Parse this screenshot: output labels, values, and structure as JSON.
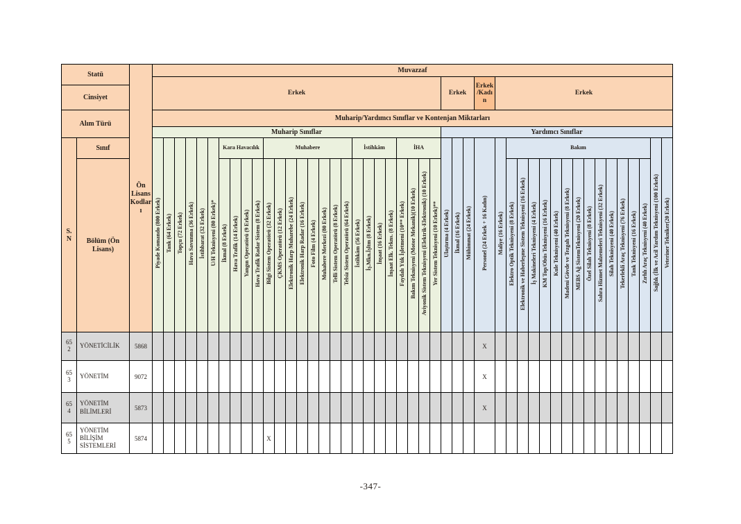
{
  "page": {
    "number_label": "-347-"
  },
  "colors": {
    "header_orange": "#FBD5B5",
    "header_orange_dark": "#FAC090",
    "muharip_green": "#EBF1DE",
    "yardimci_blue": "#DCE6F1",
    "shaded_row_gray": "#D9D9D9",
    "border": "#000000"
  },
  "header": {
    "statu": "Statü",
    "cinsiyet": "Cinsiyet",
    "alim_turu": "Alım Türü",
    "sinif": "Sınıf",
    "sn": "S.N",
    "bolum": "Bölüm (Ön Lisans)",
    "on_lisans_kodlari": "Ön Lisans Kodları",
    "muvazzaf": "Muvazzaf",
    "kontenjan": "Muharip/Yardımcı Sınıflar ve Kontenjan Miktarları",
    "muharip_band": "Muharip Sınıflar",
    "yardimci_band": "Yardımcı Sınıflar",
    "gender_cells": [
      {
        "label": "Erkek",
        "span": 26,
        "variant": "light"
      },
      {
        "label": "Erkek",
        "span": 3,
        "variant": "light"
      },
      {
        "label": "Erkek/Kadın",
        "span": 1,
        "variant": "dark"
      },
      {
        "label": "Erkek",
        "span": 16,
        "variant": "light"
      }
    ]
  },
  "columns": {
    "muharip": {
      "ungrouped": [
        "Piyade Komando (800 Erkek)",
        "Tank (64 Erkek)",
        "Topçu (72 Erkek)",
        "Hava Savunma (36 Erkek)",
        "İstihbarat (32 Erkek)",
        "U/H Teknisyeni (80 Erkek)*"
      ],
      "groups": [
        {
          "name": "Kara Havacılık",
          "cols": [
            "İkmal (8 Erkek)",
            "Hava Trafik (14 Erkek)",
            "Yangın Operatörü (9 Erkek)",
            "Hava Trafik Radar Sistem (8 Erkek)"
          ]
        },
        {
          "name": "Muhabere",
          "cols": [
            "Bilgi Sistem Operatörü (32 Erkek)",
            "ÇKMS Operatörü (12 Erkek)",
            "Elektronik Harp Muharebe (24 Erkek)",
            "Elektronik Harp Radar (16 Erkek)",
            "Foto Film (4 Erkek)",
            "Muhabere Merkezi (80 Erkek)",
            "Telli Sistem Operatörü (8 Erkek)",
            "Telsiz Sistem Operatörü (64 Erkek)"
          ]
        },
        {
          "name": "İstihkâm",
          "cols": [
            "İstihkâm (56 Erkek)",
            "İş.Mkn.İşltm (8 Erkek)",
            "İnşaat (16 Erkek)",
            "İnşaat Elk. Tekns. (8 Erkek)"
          ]
        },
        {
          "name": "İHA",
          "cols": [
            "Faydalı Yük İşletmeni (10** Erkek)",
            "Bakım Teknisyeni (Motor Mekanik)(10 Erkek)",
            "Aviyonik Sistem Teknisyeni (Elektrik-Elektronik) (10 Erkek)",
            "Yer Sistem Teknisyeni (10 Erkek)**"
          ]
        }
      ]
    },
    "yardimci": {
      "ungrouped_left": [
        "Ulaştırma (4 Erkek)",
        "İkmal (16 Erkek)",
        "Mühimmat (24 Erkek)",
        "Personel (24 Erkek + 16 Kadın)",
        "Maliye (16 Erkek)"
      ],
      "groups": [
        {
          "name": "Bakım",
          "cols": [
            "Elektro Optik Teknisyeni (8 Erkek)",
            "Elektronik ve Haberleşme Sistem Teknisyeni (16 Erkek)",
            "İş Makineleri Teknisyeni (4 Erkek)",
            "KM Top/Obüs Teknisyeni (16 Erkek)",
            "Kule Teknisyeni (40 Erkek)",
            "Madeni Gövde ve Tezgah Teknisyeni (8 Erkek)",
            "MEBS Ağ SistemTeknisyeni (20 Erkek)",
            "Özel Silah Teknisyeni (8 Erkek)",
            "Sahra Hizmet Malzemeleri Teknisyeni (32 Erkek)",
            "Silah Teknisyeni (40 Erkek)",
            "Tekerlekli Araç Teknisyeni (76 Erkek)",
            "Tank Teknisyeni (16 Erkek)",
            "Zırhlı Araç Teknisyeni (40 Erkek)"
          ]
        }
      ],
      "ungrouped_right": [
        "Sağlık (İlk ve Acil Yardım Teknisyeni (100 Erkek)",
        "Veteriner Tekniker(20 Erkek)"
      ]
    }
  },
  "rows": [
    {
      "sn": "652",
      "bolum": "YÖNETİCİLİK",
      "kod": "5868",
      "shaded": true,
      "marks": [
        {
          "col_index": 29,
          "text": "X"
        }
      ]
    },
    {
      "sn": "653",
      "bolum": "YÖNETİM",
      "kod": "9072",
      "shaded": false,
      "marks": [
        {
          "col_index": 29,
          "text": "X"
        }
      ]
    },
    {
      "sn": "654",
      "bolum": "YÖNETİM BİLİMLERİ",
      "kod": "5873",
      "shaded": true,
      "marks": [
        {
          "col_index": 29,
          "text": "X"
        }
      ]
    },
    {
      "sn": "655",
      "bolum": "YÖNETİM BİLİŞİM SİSTEMLERİ",
      "kod": "5874",
      "shaded": false,
      "marks": [
        {
          "col_index": 10,
          "text": "X"
        }
      ]
    }
  ]
}
